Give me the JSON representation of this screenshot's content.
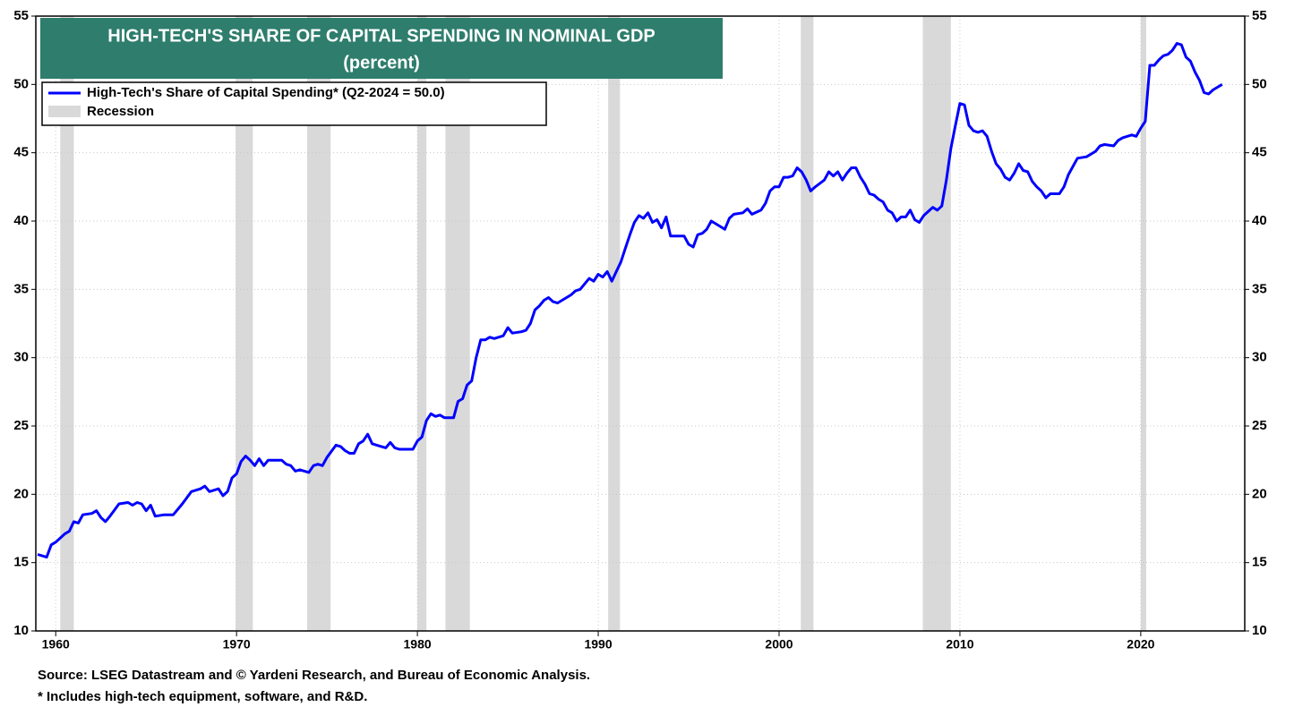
{
  "chart_data": {
    "type": "line",
    "title": "HIGH-TECH'S SHARE OF CAPITAL SPENDING IN NOMINAL GDP",
    "subtitle": "(percent)",
    "source": "Source: LSEG Datastream and © Yardeni Research, and Bureau of Economic Analysis.",
    "note": "* Includes high-tech equipment, software, and R&D.",
    "x": [
      1959,
      1959.5,
      1959.75,
      1960,
      1960.5,
      1960.75,
      1961,
      1961.25,
      1961.5,
      1962,
      1962.25,
      1962.5,
      1962.75,
      1963,
      1963.5,
      1964,
      1964.25,
      1964.5,
      1964.75,
      1965,
      1965.25,
      1965.5,
      1966,
      1966.5,
      1967,
      1967.5,
      1968,
      1968.25,
      1968.5,
      1969,
      1969.25,
      1969.5,
      1969.75,
      1970,
      1970.25,
      1970.5,
      1970.75,
      1971,
      1971.25,
      1971.5,
      1971.75,
      1972.5,
      1972.75,
      1973,
      1973.25,
      1973.5,
      1974,
      1974.25,
      1974.5,
      1974.75,
      1975,
      1975.5,
      1975.75,
      1976,
      1976.25,
      1976.5,
      1976.75,
      1977,
      1977.25,
      1977.5,
      1977.75,
      1978,
      1978.25,
      1978.5,
      1978.75,
      1979,
      1979.5,
      1979.75,
      1980,
      1980.25,
      1980.5,
      1980.75,
      1981,
      1981.25,
      1981.5,
      1982,
      1982.25,
      1982.5,
      1982.75,
      1983,
      1983.25,
      1983.5,
      1983.75,
      1984,
      1984.25,
      1984.75,
      1985,
      1985.25,
      1985.75,
      1986,
      1986.25,
      1986.5,
      1986.75,
      1987,
      1987.25,
      1987.5,
      1987.75,
      1988,
      1988.5,
      1988.75,
      1989,
      1989.25,
      1989.5,
      1989.75,
      1990,
      1990.25,
      1990.5,
      1990.75,
      1991,
      1991.25,
      1991.5,
      1991.75,
      1992,
      1992.25,
      1992.5,
      1992.75,
      1993,
      1993.25,
      1993.5,
      1993.75,
      1994,
      1994.75,
      1995,
      1995.25,
      1995.5,
      1995.75,
      1996,
      1996.25,
      1996.75,
      1997,
      1997.25,
      1997.5,
      1998,
      1998.25,
      1998.5,
      1999,
      1999.25,
      1999.5,
      1999.75,
      2000,
      2000.25,
      2000.5,
      2000.75,
      2001,
      2001.25,
      2001.5,
      2001.75,
      2002,
      2002.5,
      2002.75,
      2003,
      2003.25,
      2003.5,
      2003.75,
      2004,
      2004.25,
      2004.5,
      2004.75,
      2005,
      2005.25,
      2005.5,
      2005.75,
      2006,
      2006.25,
      2006.5,
      2006.75,
      2007,
      2007.25,
      2007.5,
      2007.75,
      2008,
      2008.25,
      2008.5,
      2008.75,
      2009,
      2009.25,
      2009.5,
      2009.75,
      2010,
      2010.25,
      2010.5,
      2010.75,
      2011,
      2011.25,
      2011.5,
      2011.75,
      2012,
      2012.25,
      2012.5,
      2012.75,
      2013,
      2013.25,
      2013.5,
      2013.75,
      2014,
      2014.25,
      2014.5,
      2014.75,
      2015,
      2015.5,
      2015.75,
      2016,
      2016.25,
      2016.5,
      2017,
      2017.5,
      2017.75,
      2018,
      2018.5,
      2018.75,
      2019,
      2019.5,
      2019.75,
      2020,
      2020.25,
      2020.5,
      2020.75,
      2021,
      2021.25,
      2021.5,
      2021.75,
      2022,
      2022.25,
      2022.5,
      2022.75,
      2023,
      2023.25,
      2023.5,
      2023.75,
      2024,
      2024.25,
      2024.5
    ],
    "series": [
      {
        "name": "High-Tech's Share of Capital Spending* (Q2-2024 = 50.0)",
        "color": "#0000ff",
        "values": [
          15.6,
          15.4,
          16.3,
          16.5,
          17.1,
          17.3,
          18.0,
          17.9,
          18.5,
          18.6,
          18.8,
          18.3,
          18.0,
          18.4,
          19.3,
          19.4,
          19.2,
          19.4,
          19.3,
          18.8,
          19.2,
          18.4,
          18.5,
          18.5,
          19.3,
          20.2,
          20.4,
          20.6,
          20.2,
          20.4,
          19.9,
          20.2,
          21.2,
          21.5,
          22.4,
          22.8,
          22.5,
          22.1,
          22.6,
          22.1,
          22.5,
          22.5,
          22.2,
          22.1,
          21.7,
          21.8,
          21.6,
          22.1,
          22.2,
          22.1,
          22.7,
          23.6,
          23.5,
          23.2,
          23.0,
          23.0,
          23.7,
          23.9,
          24.4,
          23.7,
          23.6,
          23.5,
          23.4,
          23.8,
          23.4,
          23.3,
          23.3,
          23.3,
          23.9,
          24.2,
          25.4,
          25.9,
          25.7,
          25.8,
          25.6,
          25.6,
          26.8,
          27.0,
          28.0,
          28.3,
          30.0,
          31.3,
          31.3,
          31.5,
          31.4,
          31.6,
          32.2,
          31.8,
          31.9,
          32.0,
          32.5,
          33.5,
          33.8,
          34.2,
          34.4,
          34.1,
          34.0,
          34.2,
          34.6,
          34.9,
          35.0,
          35.4,
          35.8,
          35.6,
          36.1,
          35.9,
          36.3,
          35.6,
          36.3,
          37.0,
          38.0,
          39.0,
          39.9,
          40.4,
          40.2,
          40.6,
          39.9,
          40.1,
          39.5,
          40.3,
          38.9,
          38.9,
          38.3,
          38.1,
          39.0,
          39.1,
          39.4,
          40.0,
          39.6,
          39.4,
          40.2,
          40.5,
          40.6,
          40.9,
          40.5,
          40.8,
          41.3,
          42.2,
          42.5,
          42.5,
          43.2,
          43.2,
          43.3,
          43.9,
          43.6,
          43.0,
          42.2,
          42.5,
          43.0,
          43.6,
          43.3,
          43.6,
          43.0,
          43.5,
          43.9,
          43.9,
          43.2,
          42.7,
          42.0,
          41.9,
          41.6,
          41.4,
          40.8,
          40.6,
          40.0,
          40.3,
          40.3,
          40.8,
          40.1,
          39.9,
          40.4,
          40.7,
          41.0,
          40.8,
          41.1,
          43.0,
          45.3,
          47.0,
          48.6,
          48.5,
          47.0,
          46.6,
          46.5,
          46.6,
          46.2,
          45.1,
          44.2,
          43.8,
          43.2,
          43.0,
          43.5,
          44.2,
          43.7,
          43.6,
          42.9,
          42.5,
          42.2,
          41.7,
          42.0,
          42.0,
          42.5,
          43.4,
          44.0,
          44.6,
          44.7,
          45.1,
          45.5,
          45.6,
          45.5,
          45.9,
          46.1,
          46.3,
          46.2,
          46.8,
          47.3,
          51.4,
          51.4,
          51.8,
          52.1,
          52.2,
          52.5,
          53.0,
          52.9,
          52.0,
          51.7,
          50.9,
          50.3,
          49.4,
          49.3,
          49.6,
          49.8,
          50.0
        ]
      }
    ],
    "recessions": {
      "name": "Recession",
      "color": "#d9d9d9",
      "periods": [
        [
          1960.25,
          1961.0
        ],
        [
          1969.95,
          1970.9
        ],
        [
          1973.9,
          1975.2
        ],
        [
          1980.0,
          1980.5
        ],
        [
          1981.55,
          1982.9
        ],
        [
          1990.55,
          1991.2
        ],
        [
          2001.2,
          2001.9
        ],
        [
          2007.95,
          2009.5
        ],
        [
          2020.0,
          2020.3
        ]
      ]
    },
    "xlim": [
      1958.9,
      2025.75
    ],
    "xticks": [
      1960,
      1970,
      1980,
      1990,
      2000,
      2010,
      2020
    ],
    "ylim": [
      10,
      55
    ],
    "yticks": [
      10,
      15,
      20,
      25,
      30,
      35,
      40,
      45,
      50,
      55
    ],
    "y2lim": [
      10,
      55
    ],
    "y2ticks": [
      10,
      15,
      20,
      25,
      30,
      35,
      40,
      45,
      50,
      55
    ],
    "grid": true,
    "legend": "upper left",
    "title_color": "#2e7d6d"
  }
}
